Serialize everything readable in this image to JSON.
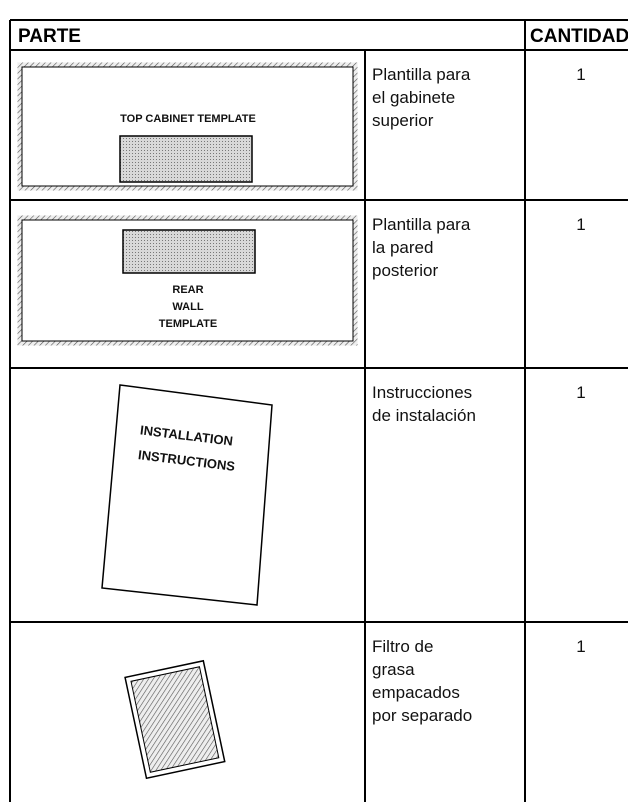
{
  "header": {
    "parte": "PARTE",
    "cantidad": "CANTIDAD"
  },
  "rows": [
    {
      "image_text": [
        "TOP CABINET TEMPLATE"
      ],
      "description": [
        "Plantilla para",
        "el gabinete",
        "superior"
      ],
      "quantity": 1
    },
    {
      "image_text": [
        "REAR",
        "WALL",
        "TEMPLATE"
      ],
      "description": [
        "Plantilla para",
        "la pared",
        "posterior"
      ],
      "quantity": 1
    },
    {
      "image_text": [
        "INSTALLATION",
        "INSTRUCTIONS"
      ],
      "description": [
        "Instrucciones",
        "de instalación"
      ],
      "quantity": 1
    },
    {
      "image_text": [],
      "description": [
        "Filtro de",
        "grasa",
        "empacados",
        "por separado"
      ],
      "quantity": 1
    }
  ]
}
